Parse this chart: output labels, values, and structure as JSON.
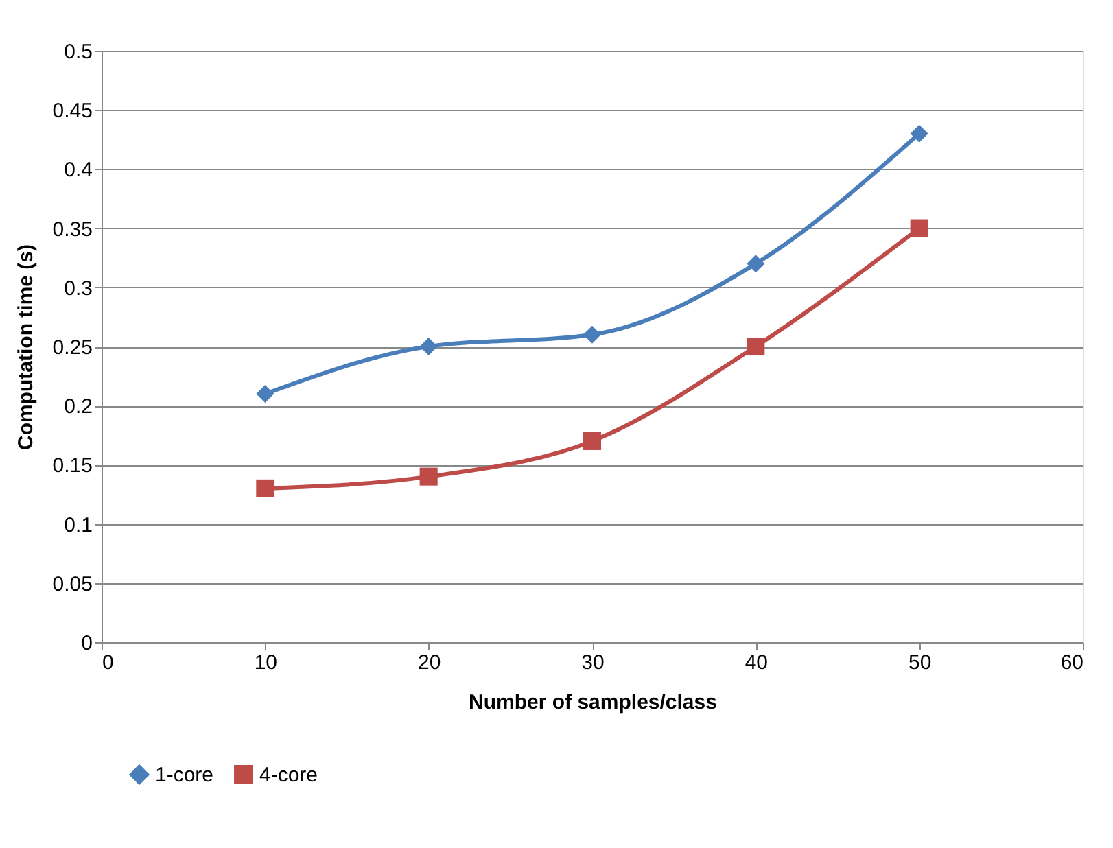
{
  "chart_data": {
    "type": "line",
    "xlabel": "Number of samples/class",
    "ylabel": "Computation time (s)",
    "x": [
      10,
      20,
      30,
      40,
      50
    ],
    "series": [
      {
        "name": "1-core",
        "color": "#4a7ebb",
        "marker": "diamond",
        "values": [
          0.21,
          0.25,
          0.26,
          0.32,
          0.43
        ]
      },
      {
        "name": "4-core",
        "color": "#be4b48",
        "marker": "square",
        "values": [
          0.13,
          0.14,
          0.17,
          0.25,
          0.35
        ]
      }
    ],
    "xlim": [
      0,
      60
    ],
    "xticks": [
      0,
      10,
      20,
      30,
      40,
      50,
      60
    ],
    "ylim": [
      0,
      0.5
    ],
    "yticks": [
      0,
      0.05,
      0.1,
      0.15,
      0.2,
      0.25,
      0.3,
      0.35,
      0.4,
      0.45,
      0.5
    ],
    "grid": "y",
    "legend": "bottom",
    "line_style": "solid"
  }
}
